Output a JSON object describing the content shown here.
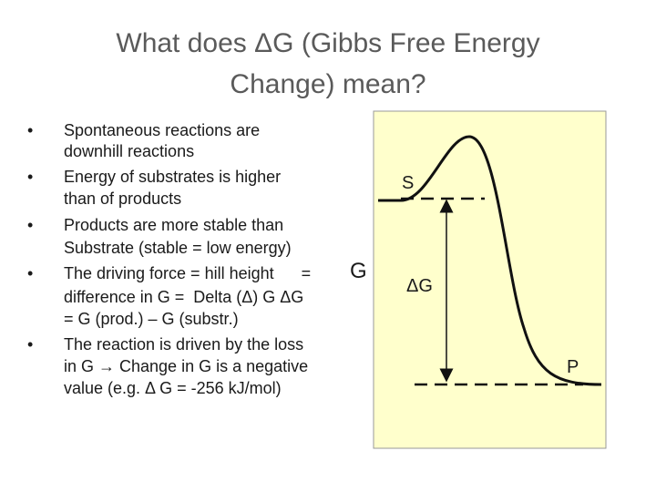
{
  "title": {
    "lines": [
      "What does ΔG (Gibbs Free Energy",
      "Change) mean?"
    ]
  },
  "bullets": [
    {
      "lines": [
        "Spontaneous reactions are",
        "downhill reactions"
      ]
    },
    {
      "lines": [
        "Energy of substrates is higher",
        "than of products"
      ]
    },
    {
      "lines": [
        "Products are more stable than",
        "Substrate (stable = low energy)"
      ]
    },
    {
      "lines": [
        "The driving force = hill height      =",
        "difference in G =  Delta (Δ) G ΔG",
        "= G (prod.) – G (substr.)"
      ],
      "large_label": "G"
    },
    {
      "lines": [
        "The reaction is driven by the loss",
        "in G → Change in G is a negative",
        "value (e.g. Δ G = -256 kJ/mol)"
      ]
    }
  ],
  "diagram": {
    "substrate_label": "S",
    "delta_label": "ΔG",
    "product_label": "P"
  }
}
